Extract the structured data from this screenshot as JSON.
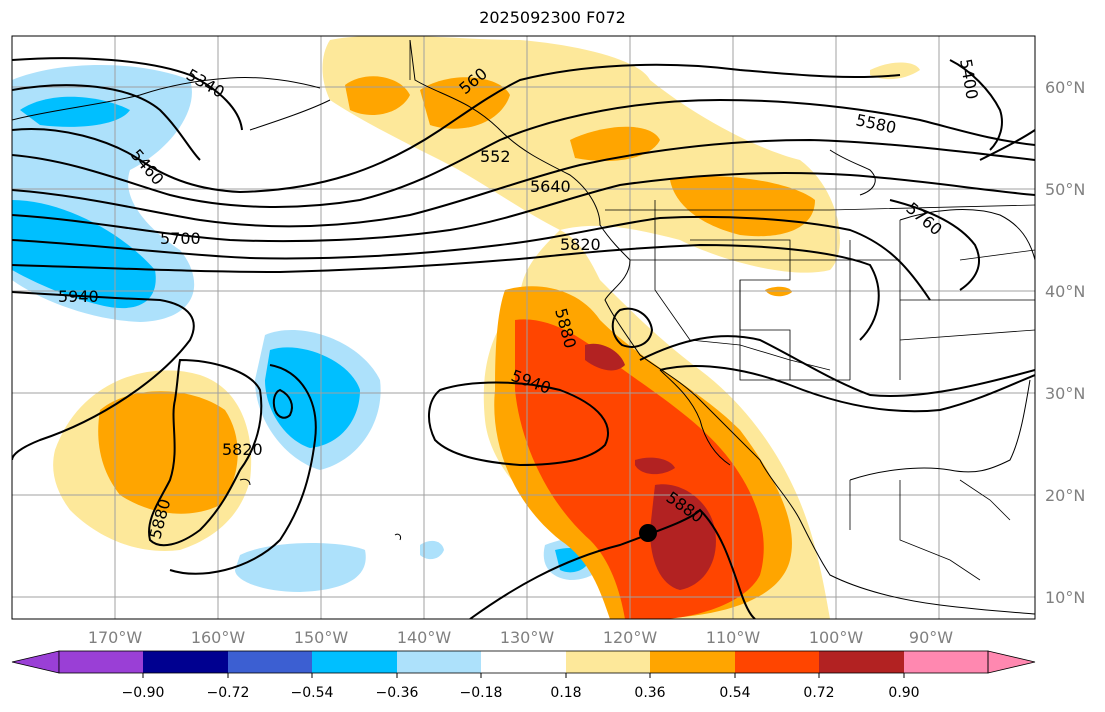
{
  "title": "2025092300 F072",
  "longitude_labels": [
    "170°W",
    "160°W",
    "150°W",
    "140°W",
    "130°W",
    "120°W",
    "110°W",
    "100°W",
    "90°W"
  ],
  "latitude_labels": [
    "60°N",
    "50°N",
    "40°N",
    "30°N",
    "20°N",
    "10°N"
  ],
  "contour_labels": [
    "5340",
    "5400",
    "5460",
    "5580",
    "5640",
    "5700",
    "5820",
    "5880",
    "5940",
    "5760",
    "5820",
    "5880",
    "5940",
    "5880",
    "560",
    "552"
  ],
  "colorbar": {
    "ticks": [
      "−0.90",
      "−0.72",
      "−0.54",
      "−0.36",
      "−0.18",
      "0.18",
      "0.36",
      "0.54",
      "0.72",
      "0.90"
    ],
    "colors": [
      "#9a3fd6",
      "#000090",
      "#3c5fd2",
      "#00bfff",
      "#ade1fb",
      "#ffffff",
      "#fde89a",
      "#ffa500",
      "#ff4500",
      "#b22222",
      "#ff88b0"
    ]
  },
  "shading_colors": {
    "light_yellow": "#fde89a",
    "orange": "#ffa500",
    "red_orange": "#ff4500",
    "dark_red": "#b22222",
    "light_blue": "#ade1fb",
    "blue": "#00bfff"
  },
  "marker": "storm-center-dot"
}
